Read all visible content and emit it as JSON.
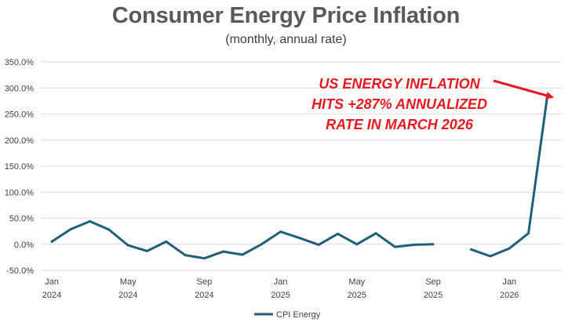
{
  "chart_data": {
    "type": "line",
    "title": "Consumer Energy Price Inflation",
    "subtitle": "(monthly, annual rate)",
    "xlabel": "",
    "ylabel": "",
    "ylim": [
      -50,
      350
    ],
    "y_ticks": [
      "350.0%",
      "300.0%",
      "250.0%",
      "200.0%",
      "150.0%",
      "100.0%",
      "50.0%",
      "0.0%",
      "-50.0%"
    ],
    "y_tick_values": [
      350,
      300,
      250,
      200,
      150,
      100,
      50,
      0,
      -50
    ],
    "x_ticks": [
      {
        "month_index": 0,
        "line1": "Jan",
        "line2": "2024"
      },
      {
        "month_index": 4,
        "line1": "May",
        "line2": "2024"
      },
      {
        "month_index": 8,
        "line1": "Sep",
        "line2": "2024"
      },
      {
        "month_index": 12,
        "line1": "Jan",
        "line2": "2025"
      },
      {
        "month_index": 16,
        "line1": "May",
        "line2": "2025"
      },
      {
        "month_index": 20,
        "line1": "Sep",
        "line2": "2025"
      },
      {
        "month_index": 24,
        "line1": "Jan",
        "line2": "2026"
      }
    ],
    "grid": true,
    "legend_position": "bottom",
    "series": [
      {
        "name": "CPI Energy",
        "color": "#1f5f7a",
        "values": [
          5,
          29,
          44,
          28,
          -2,
          -13,
          5,
          -21,
          -27,
          -14,
          -20,
          0,
          24,
          12,
          -1,
          20,
          0,
          21,
          -5,
          -1,
          0,
          null,
          -10,
          -23,
          -8,
          21,
          287
        ]
      }
    ],
    "annotation": {
      "lines": [
        "US ENERGY INFLATION",
        "HITS +287% ANNUALIZED",
        "RATE IN MARCH 2026"
      ],
      "color": "#e8191e"
    }
  }
}
